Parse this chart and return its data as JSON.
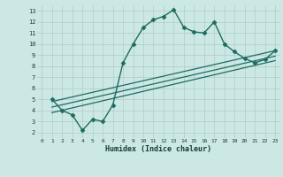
{
  "xlabel": "Humidex (Indice chaleur)",
  "ylabel": "",
  "xlim": [
    -0.5,
    23.5
  ],
  "ylim": [
    1.5,
    13.5
  ],
  "xticks": [
    0,
    1,
    2,
    3,
    4,
    5,
    6,
    7,
    8,
    9,
    10,
    11,
    12,
    13,
    14,
    15,
    16,
    17,
    18,
    19,
    20,
    21,
    22,
    23
  ],
  "yticks": [
    2,
    3,
    4,
    5,
    6,
    7,
    8,
    9,
    10,
    11,
    12,
    13
  ],
  "bg_color": "#cce8e4",
  "line_color": "#1d6b62",
  "grid_color": "#b0ccc8",
  "lines": [
    {
      "x": [
        1,
        2,
        3,
        4,
        5,
        6,
        7,
        8,
        9,
        10,
        11,
        12,
        13,
        14,
        15,
        16,
        17,
        18,
        19,
        20,
        21,
        22,
        23
      ],
      "y": [
        5.0,
        4.0,
        3.6,
        2.2,
        3.2,
        3.0,
        4.5,
        8.3,
        10.0,
        11.5,
        12.2,
        12.5,
        13.1,
        11.5,
        11.1,
        11.0,
        12.0,
        10.0,
        9.3,
        8.7,
        8.3,
        8.6,
        9.4
      ],
      "marker": "D",
      "markersize": 2.5,
      "linewidth": 1.0,
      "straight": false
    },
    {
      "x": [
        1,
        23
      ],
      "y": [
        4.8,
        9.4
      ],
      "marker": null,
      "markersize": 0,
      "linewidth": 0.9,
      "straight": true
    },
    {
      "x": [
        1,
        23
      ],
      "y": [
        4.3,
        8.9
      ],
      "marker": null,
      "markersize": 0,
      "linewidth": 0.9,
      "straight": true
    },
    {
      "x": [
        1,
        23
      ],
      "y": [
        3.8,
        8.5
      ],
      "marker": null,
      "markersize": 0,
      "linewidth": 0.9,
      "straight": true
    }
  ],
  "xlabel_fontsize": 6,
  "xtick_fontsize": 4.5,
  "ytick_fontsize": 5
}
